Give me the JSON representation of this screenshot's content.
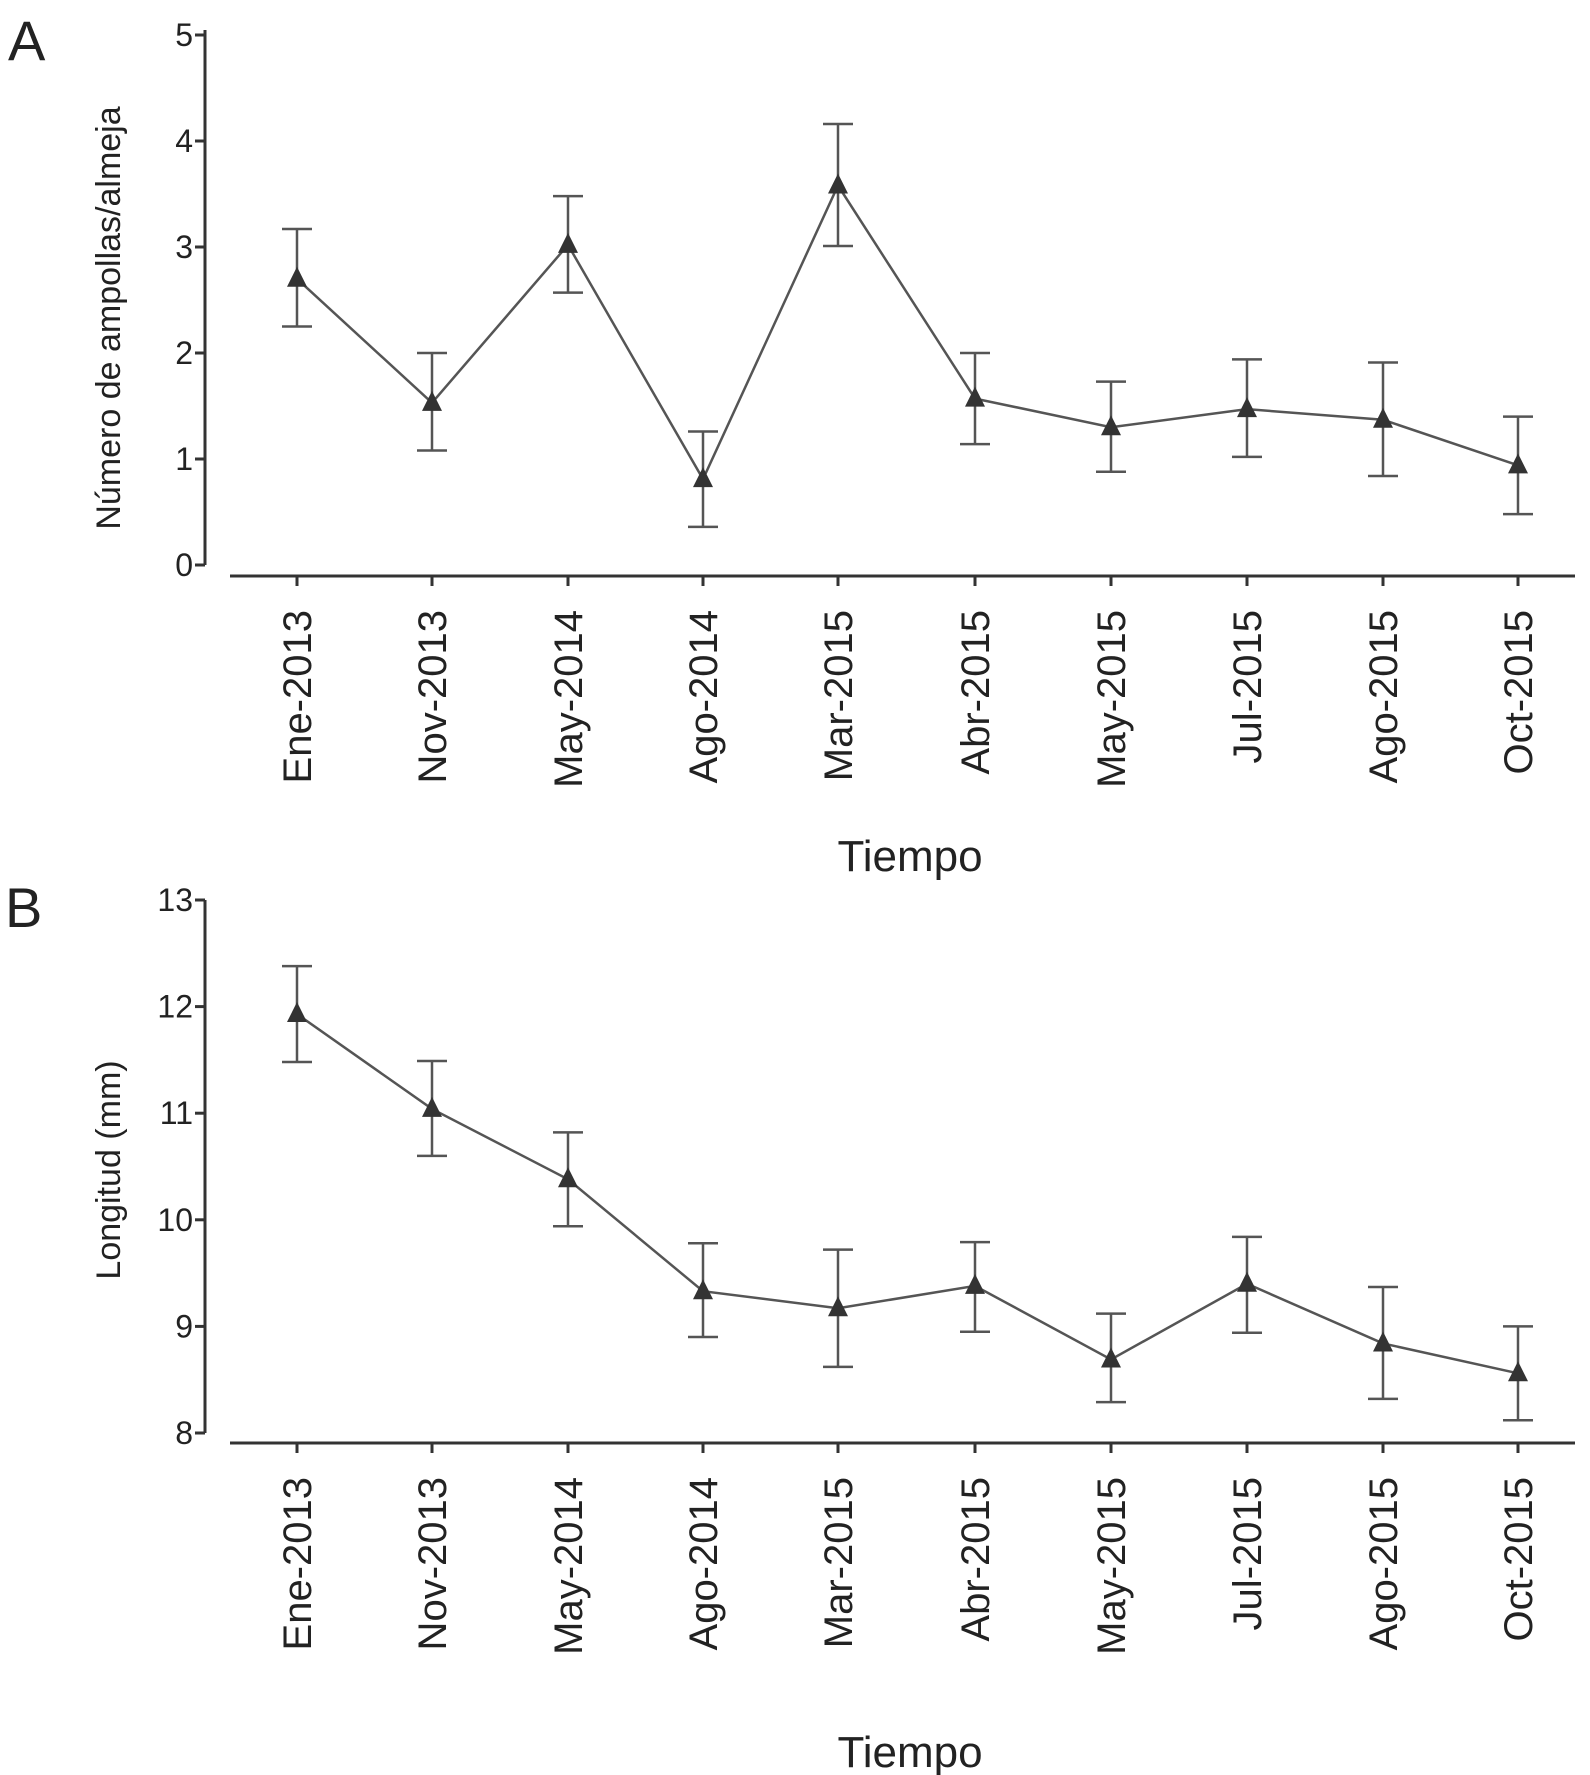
{
  "chart_data": [
    {
      "panel_label": "A",
      "type": "line",
      "title": "",
      "xlabel": "Tiempo",
      "ylabel": "Número de ampollas/almeja",
      "categories": [
        "Ene-2013",
        "Nov-2013",
        "May-2014",
        "Ago-2014",
        "Mar-2015",
        "Abr-2015",
        "May-2015",
        "Jul-2015",
        "Ago-2015",
        "Oct-2015"
      ],
      "yticks": [
        "0",
        "1",
        "2",
        "3",
        "4",
        "5"
      ],
      "ylim": [
        0,
        5
      ],
      "series": [
        {
          "values": [
            2.7,
            1.53,
            3.02,
            0.81,
            3.58,
            1.57,
            1.3,
            1.47,
            1.37,
            0.94
          ],
          "error_low": [
            2.25,
            1.08,
            2.57,
            0.36,
            3.01,
            1.14,
            0.88,
            1.02,
            0.84,
            0.48
          ],
          "error_high": [
            3.17,
            2.0,
            3.48,
            1.26,
            4.16,
            2.0,
            1.73,
            1.94,
            1.91,
            1.4
          ]
        }
      ],
      "marker": "triangle",
      "grid": false
    },
    {
      "panel_label": "B",
      "type": "line",
      "title": "",
      "xlabel": "Tiempo",
      "ylabel": "Longitud (mm)",
      "categories": [
        "Ene-2013",
        "Nov-2013",
        "May-2014",
        "Ago-2014",
        "Mar-2015",
        "Abr-2015",
        "May-2015",
        "Jul-2015",
        "Ago-2015",
        "Oct-2015"
      ],
      "yticks": [
        "8",
        "9",
        "10",
        "11",
        "12",
        "13"
      ],
      "ylim": [
        8,
        13
      ],
      "series": [
        {
          "values": [
            11.93,
            11.04,
            10.38,
            9.33,
            9.17,
            9.38,
            8.69,
            9.4,
            8.84,
            8.56
          ],
          "error_low": [
            11.48,
            10.6,
            9.94,
            8.9,
            8.62,
            8.95,
            8.29,
            8.94,
            8.32,
            8.12
          ],
          "error_high": [
            12.38,
            11.49,
            10.82,
            9.78,
            9.72,
            9.79,
            9.12,
            9.84,
            9.37,
            9.0
          ]
        }
      ],
      "marker": "triangle",
      "grid": false
    }
  ]
}
